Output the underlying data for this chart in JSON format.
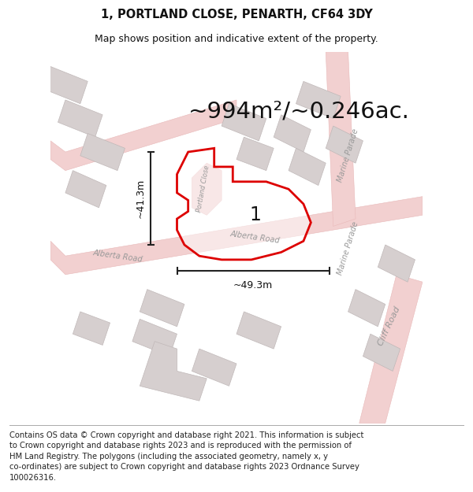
{
  "title": "1, PORTLAND CLOSE, PENARTH, CF64 3DY",
  "subtitle": "Map shows position and indicative extent of the property.",
  "area_text": "~994m²/~0.246ac.",
  "measure_h": "~41.3m",
  "measure_w": "~49.3m",
  "plot_label": "1",
  "footer": "Contains OS data © Crown copyright and database right 2021. This information is subject\nto Crown copyright and database rights 2023 and is reproduced with the permission of\nHM Land Registry. The polygons (including the associated geometry, namely x, y\nco-ordinates) are subject to Crown copyright and database rights 2023 Ordnance Survey\n100026316.",
  "map_bg": "#f9f7f7",
  "road_color": "#f2d0d0",
  "road_edge_color": "#e8b8b8",
  "building_color": "#d6cfcf",
  "building_edge_color": "#c0b8b8",
  "plot_outline_color": "#dd0000",
  "road_label_color": "#999999",
  "text_color": "#111111",
  "title_fontsize": 10.5,
  "subtitle_fontsize": 9,
  "area_fontsize": 21,
  "footer_fontsize": 7.2
}
